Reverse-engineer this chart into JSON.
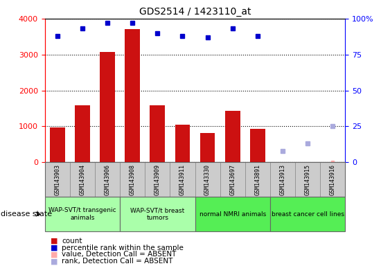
{
  "title": "GDS2514 / 1423110_at",
  "samples": [
    "GSM143903",
    "GSM143904",
    "GSM143906",
    "GSM143908",
    "GSM143909",
    "GSM143911",
    "GSM143330",
    "GSM143697",
    "GSM143891",
    "GSM143913",
    "GSM143915",
    "GSM143916"
  ],
  "counts": [
    960,
    1580,
    3080,
    3700,
    1590,
    1040,
    820,
    1430,
    930,
    0,
    0,
    0
  ],
  "percentile_ranks": [
    88,
    93,
    97,
    97,
    90,
    88,
    87,
    93,
    88,
    null,
    null,
    null
  ],
  "absent_ranks": [
    null,
    null,
    null,
    null,
    null,
    null,
    null,
    null,
    null,
    8,
    13,
    25
  ],
  "absent_values": [
    null,
    null,
    null,
    null,
    null,
    null,
    null,
    null,
    null,
    null,
    null,
    5
  ],
  "detection_absent": [
    false,
    false,
    false,
    false,
    false,
    false,
    false,
    false,
    false,
    true,
    true,
    true
  ],
  "groups": [
    {
      "label": "WAP-SVT/t transgenic\nanimals",
      "start": 0,
      "end": 3,
      "color": "#aaffaa"
    },
    {
      "label": "WAP-SVT/t breast\ntumors",
      "start": 3,
      "end": 6,
      "color": "#aaffaa"
    },
    {
      "label": "normal NMRI animals",
      "start": 6,
      "end": 9,
      "color": "#55ee55"
    },
    {
      "label": "breast cancer cell lines",
      "start": 9,
      "end": 12,
      "color": "#55ee55"
    }
  ],
  "ylim_left": [
    0,
    4000
  ],
  "ylim_right": [
    0,
    100
  ],
  "yticks_left": [
    0,
    1000,
    2000,
    3000,
    4000
  ],
  "yticks_right": [
    0,
    25,
    50,
    75,
    100
  ],
  "bar_color": "#cc1111",
  "dot_color": "#0000cc",
  "absent_dot_color": "#aaaadd",
  "absent_val_color": "#ffaaaa",
  "sample_bg_color": "#cccccc",
  "legend_items": [
    {
      "label": "count",
      "color": "#cc1111"
    },
    {
      "label": "percentile rank within the sample",
      "color": "#0000cc"
    },
    {
      "label": "value, Detection Call = ABSENT",
      "color": "#ffaaaa"
    },
    {
      "label": "rank, Detection Call = ABSENT",
      "color": "#aaaadd"
    }
  ]
}
